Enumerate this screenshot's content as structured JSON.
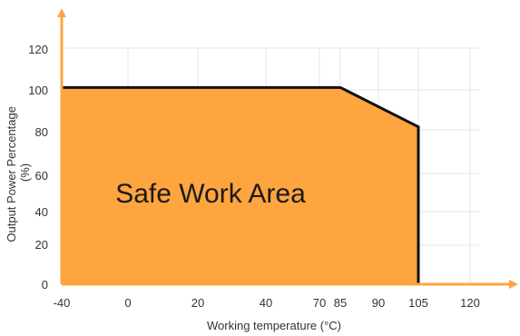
{
  "chart_data": {
    "type": "area",
    "xlabel": "Working temperature (°C)",
    "ylabel_lines": [
      "Output Power Percentage",
      "(%)"
    ],
    "area_label": "Safe Work Area",
    "x_ticks": [
      "-40",
      "0",
      "20",
      "40",
      "70",
      "85",
      "90",
      "105",
      "120"
    ],
    "y_ticks": [
      "0",
      "20",
      "40",
      "60",
      "80",
      "100",
      "120"
    ],
    "series": [
      {
        "x": [
          "-40",
          "85",
          "105",
          "105"
        ],
        "y": [
          100,
          100,
          80,
          0
        ]
      }
    ],
    "grid": true,
    "colors": {
      "area": "#ffa540",
      "line": "#111111",
      "axis": "#ffa540",
      "grid": "#dfe8e4"
    }
  }
}
